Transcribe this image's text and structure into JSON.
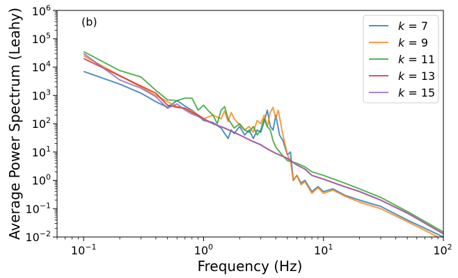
{
  "chart_data": {
    "type": "line",
    "panel_label": "(b)",
    "xlabel": "Frequency (Hz)",
    "ylabel": "Average Power Spectrum (Leahy)",
    "xscale": "log",
    "yscale": "log",
    "xlim": [
      0.06,
      100
    ],
    "ylim": [
      0.01,
      1000000
    ],
    "x_ticks": [
      {
        "value": 0.1,
        "base": "10",
        "exp": "−1"
      },
      {
        "value": 1,
        "base": "10",
        "exp": "0"
      },
      {
        "value": 10,
        "base": "10",
        "exp": "1"
      },
      {
        "value": 100,
        "base": "10",
        "exp": "2"
      }
    ],
    "y_ticks": [
      {
        "value": 0.01,
        "base": "10",
        "exp": "−2"
      },
      {
        "value": 0.1,
        "base": "10",
        "exp": "−1"
      },
      {
        "value": 1,
        "base": "10",
        "exp": "0"
      },
      {
        "value": 10,
        "base": "10",
        "exp": "1"
      },
      {
        "value": 100,
        "base": "10",
        "exp": "2"
      },
      {
        "value": 1000,
        "base": "10",
        "exp": "3"
      },
      {
        "value": 10000,
        "base": "10",
        "exp": "4"
      },
      {
        "value": 100000,
        "base": "10",
        "exp": "5"
      },
      {
        "value": 1000000,
        "base": "10",
        "exp": "6"
      }
    ],
    "legend_position": "top-right",
    "grid": false,
    "series": [
      {
        "name": "k = 7",
        "legend_var": "k",
        "legend_val": "7",
        "color": "#1f77b4",
        "points": [
          [
            0.1,
            7000
          ],
          [
            0.2,
            2500
          ],
          [
            0.3,
            1200
          ],
          [
            0.4,
            600
          ],
          [
            0.5,
            380
          ],
          [
            0.6,
            650
          ],
          [
            0.7,
            420
          ],
          [
            0.8,
            300
          ],
          [
            0.9,
            200
          ],
          [
            1.0,
            130
          ],
          [
            1.2,
            110
          ],
          [
            1.4,
            70
          ],
          [
            1.6,
            30
          ],
          [
            1.7,
            60
          ],
          [
            1.8,
            45
          ],
          [
            2.0,
            80
          ],
          [
            2.2,
            40
          ],
          [
            2.4,
            60
          ],
          [
            2.6,
            30
          ],
          [
            2.8,
            60
          ],
          [
            3.0,
            50
          ],
          [
            3.2,
            120
          ],
          [
            3.4,
            300
          ],
          [
            3.6,
            80
          ],
          [
            3.8,
            60
          ],
          [
            4.0,
            200
          ],
          [
            4.3,
            40
          ],
          [
            4.6,
            25
          ],
          [
            5.0,
            8
          ],
          [
            5.3,
            10
          ],
          [
            5.6,
            1.0
          ],
          [
            6.0,
            1.5
          ],
          [
            6.5,
            0.8
          ],
          [
            7.0,
            1.0
          ],
          [
            8.0,
            0.4
          ],
          [
            9.0,
            0.6
          ],
          [
            10,
            0.4
          ],
          [
            12,
            0.5
          ],
          [
            15,
            0.3
          ],
          [
            20,
            0.2
          ],
          [
            30,
            0.12
          ],
          [
            50,
            0.04
          ],
          [
            100,
            0.01
          ]
        ]
      },
      {
        "name": "k = 9",
        "legend_var": "k",
        "legend_val": "9",
        "color": "#ff7f0e",
        "points": [
          [
            0.1,
            25000
          ],
          [
            0.2,
            5000
          ],
          [
            0.3,
            2000
          ],
          [
            0.4,
            1000
          ],
          [
            0.5,
            600
          ],
          [
            0.6,
            400
          ],
          [
            0.7,
            350
          ],
          [
            0.8,
            280
          ],
          [
            0.9,
            200
          ],
          [
            1.0,
            150
          ],
          [
            1.2,
            200
          ],
          [
            1.4,
            150
          ],
          [
            1.5,
            280
          ],
          [
            1.6,
            120
          ],
          [
            1.7,
            250
          ],
          [
            1.8,
            150
          ],
          [
            2.0,
            90
          ],
          [
            2.2,
            60
          ],
          [
            2.4,
            80
          ],
          [
            2.6,
            50
          ],
          [
            2.8,
            130
          ],
          [
            3.0,
            100
          ],
          [
            3.2,
            200
          ],
          [
            3.4,
            80
          ],
          [
            3.6,
            250
          ],
          [
            3.8,
            380
          ],
          [
            4.0,
            150
          ],
          [
            4.2,
            300
          ],
          [
            4.5,
            60
          ],
          [
            5.0,
            8
          ],
          [
            5.3,
            5
          ],
          [
            5.6,
            1.0
          ],
          [
            6.0,
            1.5
          ],
          [
            6.5,
            0.7
          ],
          [
            7.0,
            0.9
          ],
          [
            8.0,
            0.35
          ],
          [
            9.0,
            0.55
          ],
          [
            10,
            0.35
          ],
          [
            12,
            0.45
          ],
          [
            15,
            0.28
          ],
          [
            20,
            0.17
          ],
          [
            30,
            0.1
          ],
          [
            50,
            0.035
          ],
          [
            100,
            0.008
          ]
        ]
      },
      {
        "name": "k = 11",
        "legend_var": "k",
        "legend_val": "11",
        "color": "#2ca02c",
        "points": [
          [
            0.1,
            35000
          ],
          [
            0.2,
            7500
          ],
          [
            0.3,
            4500
          ],
          [
            0.4,
            1500
          ],
          [
            0.5,
            700
          ],
          [
            0.6,
            650
          ],
          [
            0.7,
            800
          ],
          [
            0.8,
            800
          ],
          [
            0.9,
            300
          ],
          [
            1.0,
            450
          ],
          [
            1.1,
            280
          ],
          [
            1.2,
            200
          ],
          [
            1.3,
            100
          ],
          [
            1.4,
            300
          ],
          [
            1.5,
            400
          ],
          [
            1.6,
            150
          ],
          [
            1.8,
            70
          ],
          [
            2.0,
            100
          ],
          [
            2.2,
            60
          ],
          [
            2.4,
            50
          ],
          [
            2.6,
            80
          ],
          [
            2.8,
            40
          ],
          [
            3.0,
            60
          ],
          [
            3.2,
            150
          ],
          [
            3.4,
            80
          ],
          [
            3.6,
            60
          ],
          [
            3.8,
            25
          ],
          [
            4.0,
            15
          ],
          [
            4.5,
            8
          ],
          [
            5.0,
            5
          ],
          [
            6.0,
            4
          ],
          [
            7.0,
            3
          ],
          [
            8.0,
            2
          ],
          [
            10,
            1.5
          ],
          [
            15,
            0.8
          ],
          [
            20,
            0.5
          ],
          [
            30,
            0.25
          ],
          [
            50,
            0.08
          ],
          [
            100,
            0.015
          ]
        ]
      },
      {
        "name": "k = 13",
        "legend_var": "k",
        "legend_val": "13",
        "color": "#d62728",
        "points": [
          [
            0.1,
            20000
          ],
          [
            0.4,
            1200
          ],
          [
            0.5,
            450
          ],
          [
            0.6,
            380
          ],
          [
            0.7,
            350
          ],
          [
            0.8,
            250
          ],
          [
            0.9,
            200
          ],
          [
            1.0,
            150
          ],
          [
            1.2,
            100
          ],
          [
            1.5,
            70
          ],
          [
            2.0,
            40
          ],
          [
            2.5,
            25
          ],
          [
            3.0,
            18
          ],
          [
            3.5,
            12
          ],
          [
            4.0,
            9
          ],
          [
            5.0,
            6
          ],
          [
            6.0,
            3.5
          ],
          [
            7.0,
            2.5
          ],
          [
            8.0,
            1.5
          ],
          [
            10,
            1.1
          ],
          [
            15,
            0.6
          ],
          [
            20,
            0.4
          ],
          [
            30,
            0.2
          ],
          [
            50,
            0.07
          ],
          [
            100,
            0.013
          ]
        ]
      },
      {
        "name": "k = 15",
        "legend_var": "k",
        "legend_val": "15",
        "color": "#9467bd",
        "points": [
          [
            0.1,
            30000
          ],
          [
            0.2,
            3500
          ],
          [
            0.3,
            1800
          ],
          [
            0.4,
            900
          ],
          [
            0.5,
            350
          ],
          [
            0.6,
            500
          ],
          [
            0.7,
            300
          ],
          [
            0.8,
            220
          ],
          [
            0.9,
            180
          ],
          [
            1.0,
            140
          ],
          [
            1.2,
            100
          ],
          [
            1.5,
            70
          ],
          [
            2.0,
            40
          ],
          [
            2.5,
            25
          ],
          [
            3.0,
            18
          ],
          [
            3.5,
            12
          ],
          [
            4.0,
            9
          ],
          [
            5.0,
            6
          ],
          [
            6.0,
            3.5
          ],
          [
            7.0,
            2.5
          ],
          [
            8.0,
            1.5
          ],
          [
            10,
            1.1
          ],
          [
            15,
            0.6
          ],
          [
            20,
            0.4
          ],
          [
            30,
            0.2
          ],
          [
            50,
            0.07
          ],
          [
            100,
            0.013
          ]
        ]
      }
    ]
  }
}
